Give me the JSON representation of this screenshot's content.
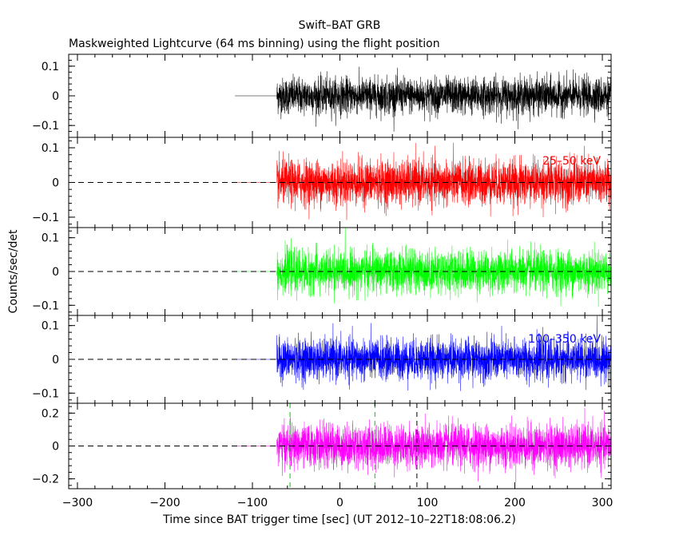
{
  "title": "Swift–BAT GRB",
  "subtitle": "Maskweighted Lightcurve (64 ms binning) using the flight position",
  "chart_data": {
    "type": "line",
    "title": "Swift–BAT GRB",
    "subtitle": "Maskweighted Lightcurve (64 ms binning) using the flight position",
    "xlabel": "Time since BAT trigger time [sec] (UT 2012–10–22T18:08:06.2)",
    "ylabel": "Counts/sec/det",
    "xlim": [
      -310,
      310
    ],
    "x_ticks": [
      -300,
      -200,
      -100,
      0,
      100,
      200,
      300
    ],
    "x_tick_labels": [
      "−300",
      "−200",
      "−100",
      "0",
      "100",
      "200",
      "300"
    ],
    "grid": false,
    "data_start": -72,
    "flat_segment": [
      -120,
      -72
    ],
    "panels": [
      {
        "id": "total",
        "label": "",
        "color": "#000000",
        "ylim": [
          -0.14,
          0.14
        ],
        "y_ticks": [
          0.1,
          0,
          -0.1
        ],
        "y_tick_labels": [
          "0.1",
          "0",
          "−0.1"
        ],
        "noise_sigma": 0.03,
        "zero_line": false,
        "markers": []
      },
      {
        "id": "band1",
        "label": "25–50 keV",
        "color": "#ff0000",
        "ylim": [
          -0.13,
          0.13
        ],
        "y_ticks": [
          0.1,
          0,
          -0.1
        ],
        "y_tick_labels": [
          "0.1",
          "0",
          "−0.1"
        ],
        "noise_sigma": 0.032,
        "zero_line": true,
        "markers": []
      },
      {
        "id": "band2",
        "label": "",
        "color": "#00ff00",
        "ylim": [
          -0.13,
          0.13
        ],
        "y_ticks": [
          0.1,
          0,
          -0.1
        ],
        "y_tick_labels": [
          "0.1",
          "0",
          "−0.1"
        ],
        "noise_sigma": 0.031,
        "zero_line": true,
        "markers": []
      },
      {
        "id": "band3",
        "label": "100–350 keV",
        "color": "#0000ff",
        "ylim": [
          -0.13,
          0.13
        ],
        "y_ticks": [
          0.1,
          0,
          -0.1
        ],
        "y_tick_labels": [
          "0.1",
          "0",
          "−0.1"
        ],
        "noise_sigma": 0.03,
        "zero_line": true,
        "markers": []
      },
      {
        "id": "band4",
        "label": "",
        "color": "#ff00ff",
        "ylim": [
          -0.26,
          0.26
        ],
        "y_ticks": [
          0.2,
          0,
          -0.2
        ],
        "y_tick_labels": [
          "0.2",
          "0",
          "−0.2"
        ],
        "noise_sigma": 0.065,
        "zero_line": true,
        "markers": [
          {
            "x": -57,
            "color": "#00cc00"
          },
          {
            "x": 40,
            "color": "#00cc00"
          },
          {
            "x": 88,
            "color": "#000000"
          }
        ]
      }
    ]
  }
}
